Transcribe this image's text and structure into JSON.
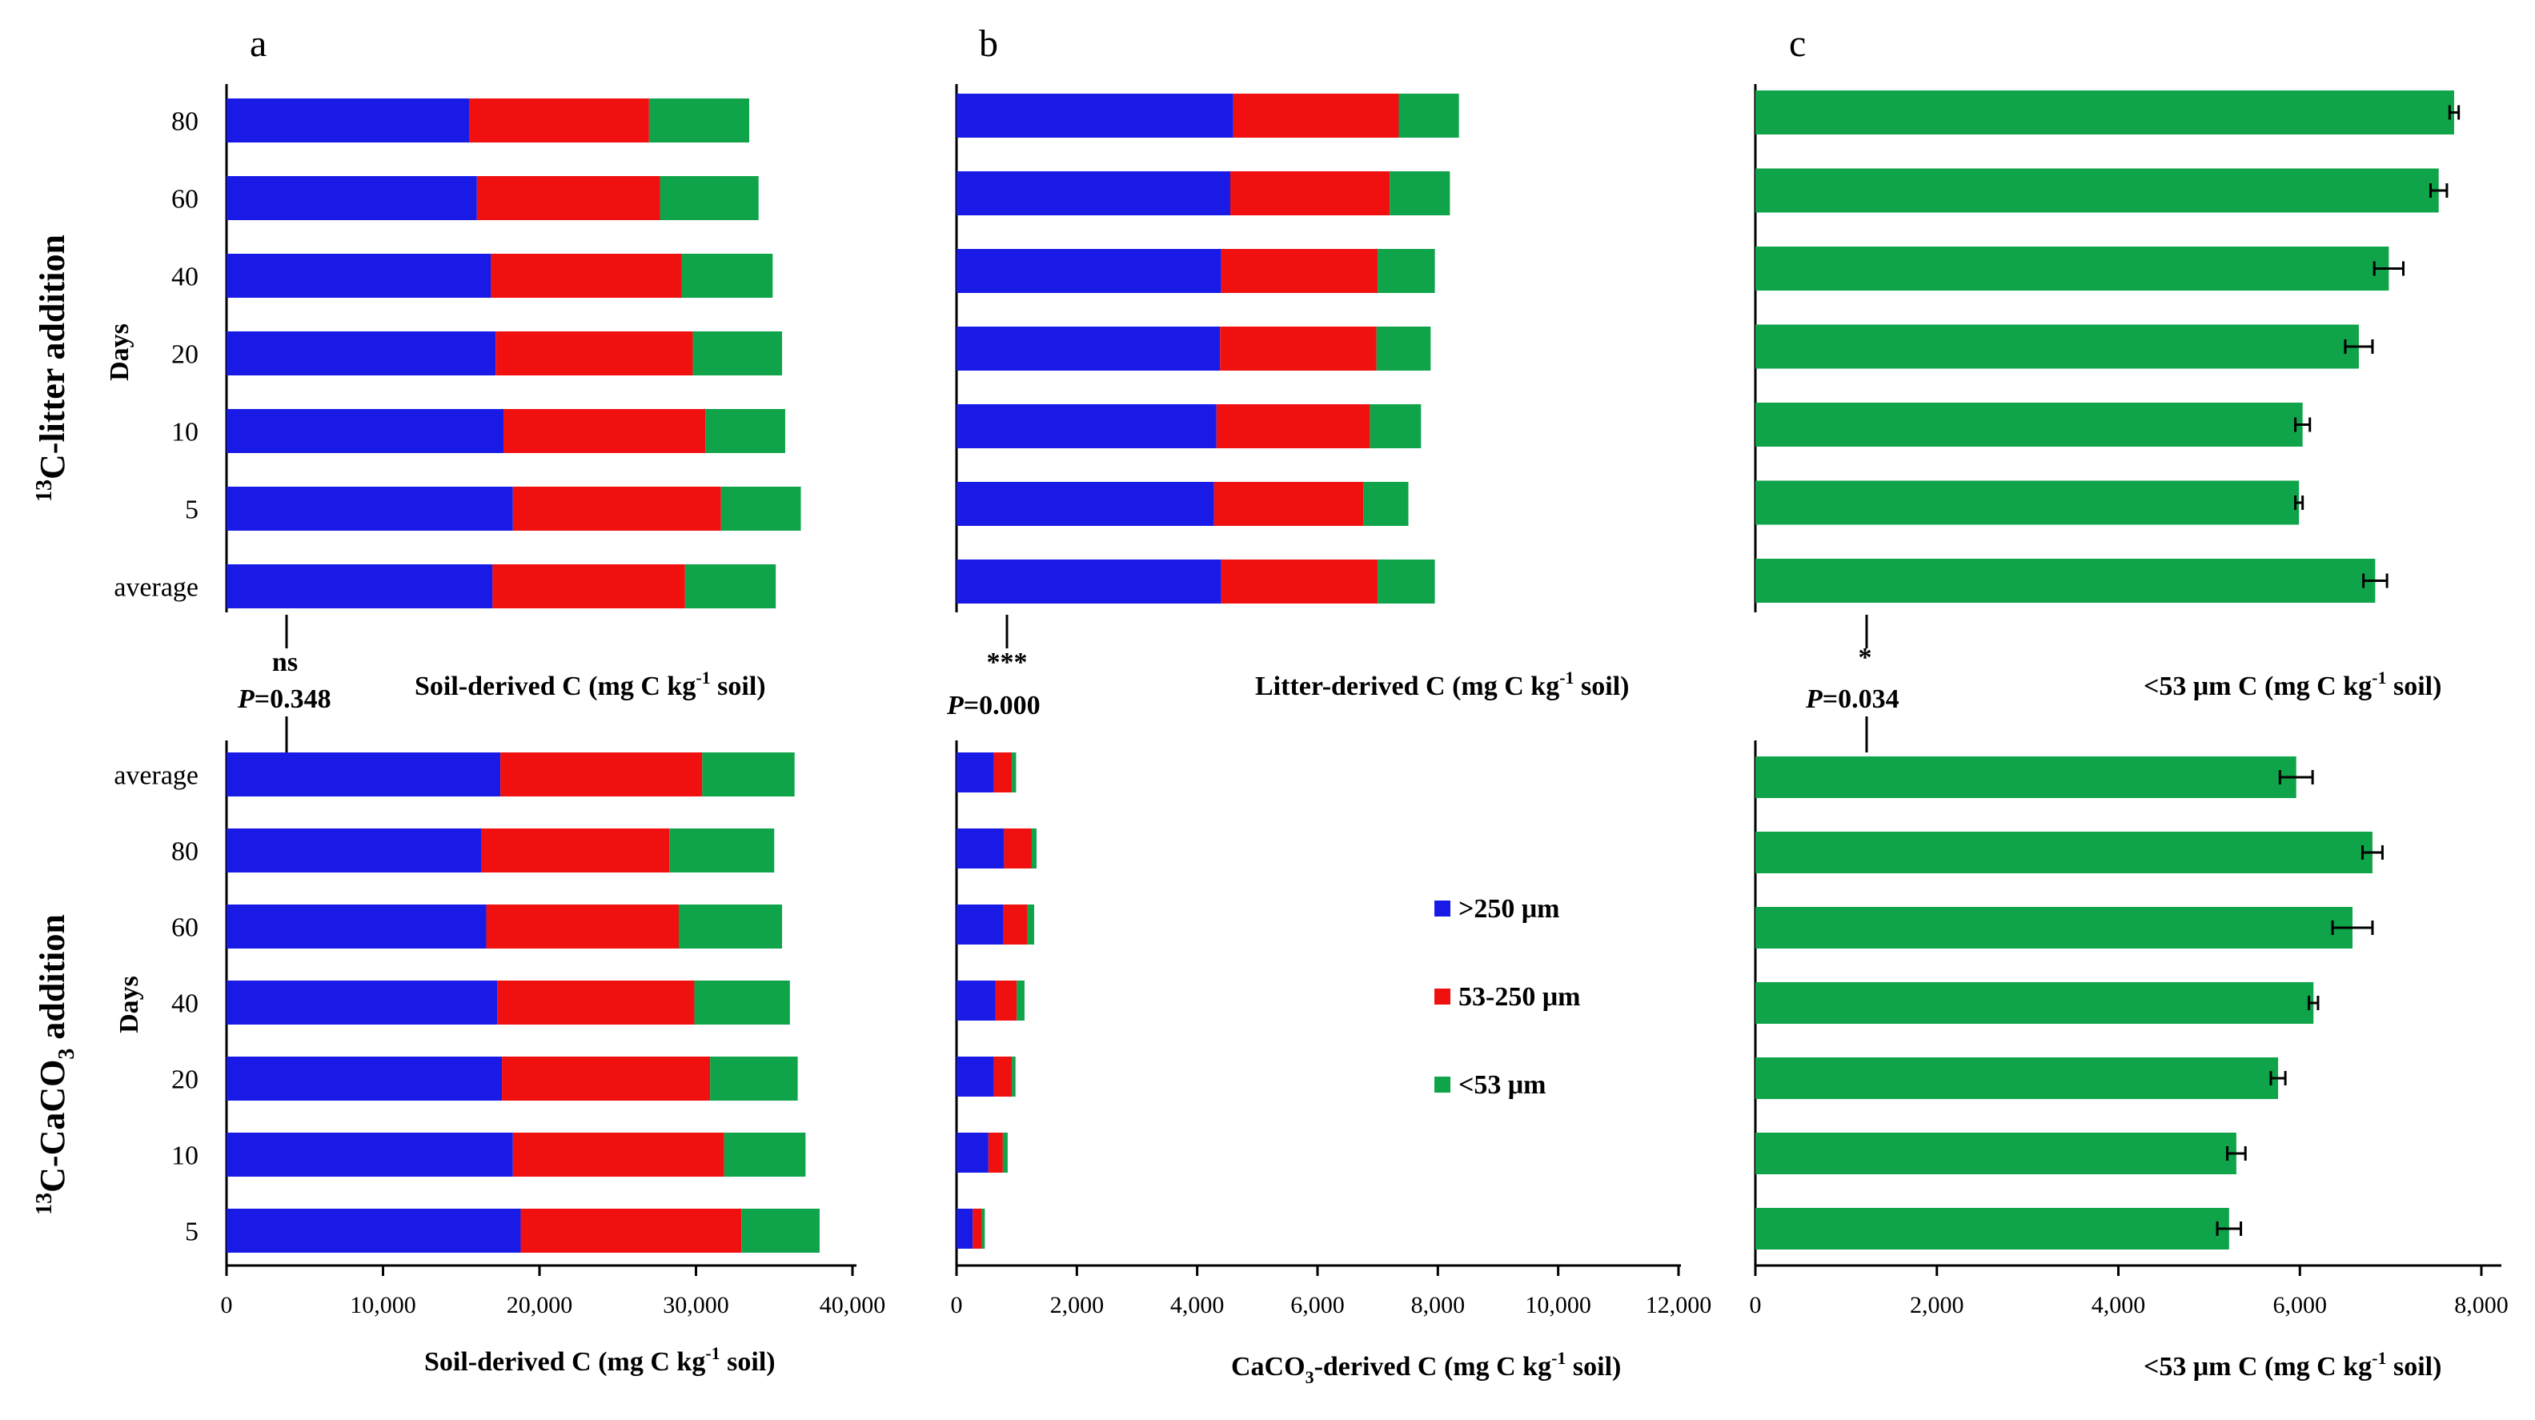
{
  "chart_data": [
    {
      "id": "a-litter",
      "panel_label": "a",
      "type": "bar",
      "orientation": "horizontal",
      "stacked": true,
      "group_label": "13C-litter addition",
      "group_title": {
        "pre": "13",
        "text": "C-litter addition",
        "sub": ""
      },
      "ylabel": "Days",
      "xlabel": {
        "text": "Soil-derived C (mg C kg",
        "sup": "-1",
        "tail": " soil)"
      },
      "categories": [
        "80",
        "60",
        "40",
        "20",
        "10",
        "5",
        "average"
      ],
      "series": [
        {
          "name": ">250 μm",
          "color": "#1a1ae6",
          "values": [
            15500,
            16000,
            16900,
            17200,
            17700,
            18300,
            17000
          ]
        },
        {
          "name": "53-250 μm",
          "color": "#f01010",
          "values": [
            11500,
            11700,
            12200,
            12600,
            12900,
            13300,
            12300
          ]
        },
        {
          "name": "<53 μm",
          "color": "#0fa34a",
          "values": [
            6400,
            6300,
            5800,
            5700,
            5100,
            5100,
            5800
          ]
        }
      ],
      "xlim": [
        0,
        40000
      ]
    },
    {
      "id": "b-litter",
      "panel_label": "b",
      "type": "bar",
      "orientation": "horizontal",
      "stacked": true,
      "xlabel": {
        "text": "Litter-derived C (mg C kg",
        "sup": "-1",
        "tail": " soil)"
      },
      "categories": [
        "80",
        "60",
        "40",
        "20",
        "10",
        "5",
        "average"
      ],
      "series": [
        {
          "name": ">250 μm",
          "color": "#1a1ae6",
          "values": [
            4600,
            4550,
            4400,
            4380,
            4320,
            4280,
            4400
          ]
        },
        {
          "name": "53-250 μm",
          "color": "#f01010",
          "values": [
            2750,
            2650,
            2600,
            2600,
            2550,
            2480,
            2600
          ]
        },
        {
          "name": "<53 μm",
          "color": "#0fa34a",
          "values": [
            1000,
            1000,
            950,
            900,
            850,
            750,
            950
          ]
        }
      ],
      "xlim": [
        0,
        12000
      ]
    },
    {
      "id": "c-litter",
      "panel_label": "c",
      "type": "bar",
      "orientation": "horizontal",
      "stacked": false,
      "xlabel": {
        "text": "<53 μm C (mg C kg",
        "sup": "-1",
        "tail": " soil)"
      },
      "categories": [
        "80",
        "60",
        "40",
        "20",
        "10",
        "5",
        "average"
      ],
      "series": [
        {
          "name": "<53 μm",
          "color": "#0fa34a",
          "values": [
            7700,
            7530,
            6980,
            6650,
            6030,
            5990,
            6830
          ],
          "errors": [
            50,
            90,
            160,
            150,
            80,
            40,
            130
          ]
        }
      ],
      "xlim": [
        0,
        8000
      ]
    },
    {
      "id": "a-caco3",
      "panel_label": "a",
      "type": "bar",
      "orientation": "horizontal",
      "stacked": true,
      "group_label": "13C-CaCO3 addition",
      "group_title": {
        "pre": "13",
        "text": "C-CaCO",
        "sub": "3",
        "tail": " addition"
      },
      "ylabel": "Days",
      "xlabel": {
        "text": "Soil-derived C (mg C kg",
        "sup": "-1",
        "tail": " soil)"
      },
      "categories": [
        "average",
        "80",
        "60",
        "40",
        "20",
        "10",
        "5"
      ],
      "series": [
        {
          "name": ">250 μm",
          "color": "#1a1ae6",
          "values": [
            17500,
            16300,
            16600,
            17300,
            17600,
            18300,
            18800
          ]
        },
        {
          "name": "53-250 μm",
          "color": "#f01010",
          "values": [
            12900,
            12000,
            12300,
            12600,
            13300,
            13500,
            14100
          ]
        },
        {
          "name": "<53 μm",
          "color": "#0fa34a",
          "values": [
            5900,
            6700,
            6600,
            6100,
            5600,
            5200,
            5000
          ]
        }
      ],
      "xlim": [
        0,
        40000
      ],
      "xticks": [
        "0",
        "10,000",
        "20,000",
        "30,000",
        "40,000"
      ]
    },
    {
      "id": "b-caco3",
      "panel_label": "b",
      "type": "bar",
      "orientation": "horizontal",
      "stacked": true,
      "xlabel": {
        "text": "CaCO",
        "sub": "3",
        "text2": "-derived C (mg C kg",
        "sup": "-1",
        "tail": " soil)"
      },
      "categories": [
        "average",
        "80",
        "60",
        "40",
        "20",
        "10",
        "5"
      ],
      "series": [
        {
          "name": ">250 μm",
          "color": "#1a1ae6",
          "values": [
            620,
            790,
            780,
            650,
            620,
            530,
            270
          ]
        },
        {
          "name": "53-250 μm",
          "color": "#f01010",
          "values": [
            300,
            460,
            400,
            350,
            300,
            240,
            150
          ]
        },
        {
          "name": "<53 μm",
          "color": "#0fa34a",
          "values": [
            70,
            80,
            110,
            130,
            60,
            80,
            50
          ]
        }
      ],
      "xlim": [
        0,
        12000
      ],
      "xticks": [
        "0",
        "2,000",
        "4,000",
        "6,000",
        "8,000",
        "10,000",
        "12,000"
      ]
    },
    {
      "id": "c-caco3",
      "panel_label": "c",
      "type": "bar",
      "orientation": "horizontal",
      "stacked": false,
      "xlabel": {
        "text": "<53 μm C (mg C kg",
        "sup": "-1",
        "tail": " soil)"
      },
      "categories": [
        "average",
        "80",
        "60",
        "40",
        "20",
        "10",
        "5"
      ],
      "series": [
        {
          "name": "<53 μm",
          "color": "#0fa34a",
          "values": [
            5960,
            6800,
            6580,
            6150,
            5760,
            5300,
            5220
          ],
          "errors": [
            180,
            110,
            220,
            50,
            80,
            100,
            130
          ]
        }
      ],
      "xlim": [
        0,
        8000
      ],
      "xticks": [
        "0",
        "2,000",
        "4,000",
        "6,000",
        "8,000"
      ]
    }
  ],
  "significance": [
    {
      "panel": "a",
      "mark": "ns",
      "p_label": "P",
      "p_value": "=0.348"
    },
    {
      "panel": "b",
      "mark": "***",
      "p_label": "P",
      "p_value": "=0.000"
    },
    {
      "panel": "c",
      "mark": "*",
      "p_label": "P",
      "p_value": "=0.034"
    }
  ],
  "legend": {
    "placement": "center",
    "items": [
      {
        "label": ">250 μm",
        "color": "#1a1ae6"
      },
      {
        "label": "53-250 μm",
        "color": "#f01010"
      },
      {
        "label": "<53 μm",
        "color": "#0fa34a"
      }
    ]
  }
}
